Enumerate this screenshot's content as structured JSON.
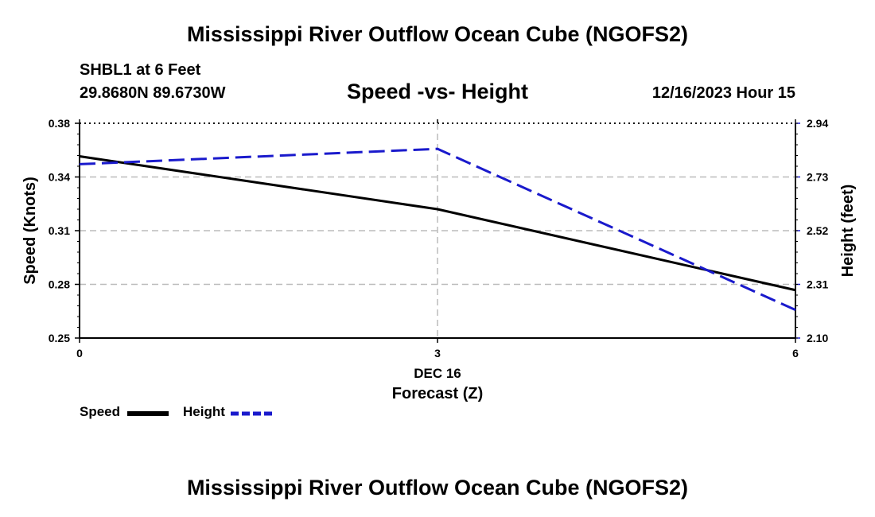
{
  "header": {
    "title": "Mississippi River Outflow Ocean Cube (NGOFS2)",
    "station": "SHBL1 at 6 Feet",
    "coords": "29.8680N  89.6730W",
    "subtitle": "Speed -vs- Height",
    "datetime": "12/16/2023 Hour 15"
  },
  "footer": {
    "title": "Mississippi River Outflow Ocean Cube (NGOFS2)"
  },
  "legend": {
    "speed_label": "Speed",
    "height_label": "Height"
  },
  "colors": {
    "speed": "#000000",
    "height": "#1a1acc",
    "grid": "#bbbbbb"
  },
  "chart_data": {
    "type": "line",
    "title": "Speed -vs- Height",
    "x": [
      0,
      3,
      6
    ],
    "x_ticks": [
      "0",
      "3",
      "6"
    ],
    "x_date_label": "DEC 16",
    "xlabel": "Forecast (Z)",
    "xlim": [
      0,
      6
    ],
    "ylabel_left": "Speed (Knots)",
    "ylabel_right": "Height (feet)",
    "ylim_left": [
      0.25,
      0.38
    ],
    "ylim_right": [
      2.1,
      2.94
    ],
    "yticks_left": [
      "0.25",
      "0.28",
      "0.31",
      "0.34",
      "0.38"
    ],
    "yticks_right": [
      "2.10",
      "2.31",
      "2.52",
      "2.73",
      "2.94"
    ],
    "grid": true,
    "legend_position": "bottom-left",
    "series": [
      {
        "name": "Speed",
        "axis": "left",
        "style": "solid",
        "values": [
          0.36,
          0.328,
          0.279
        ]
      },
      {
        "name": "Height",
        "axis": "right",
        "style": "dashed",
        "values": [
          2.78,
          2.84,
          2.21
        ]
      }
    ]
  }
}
